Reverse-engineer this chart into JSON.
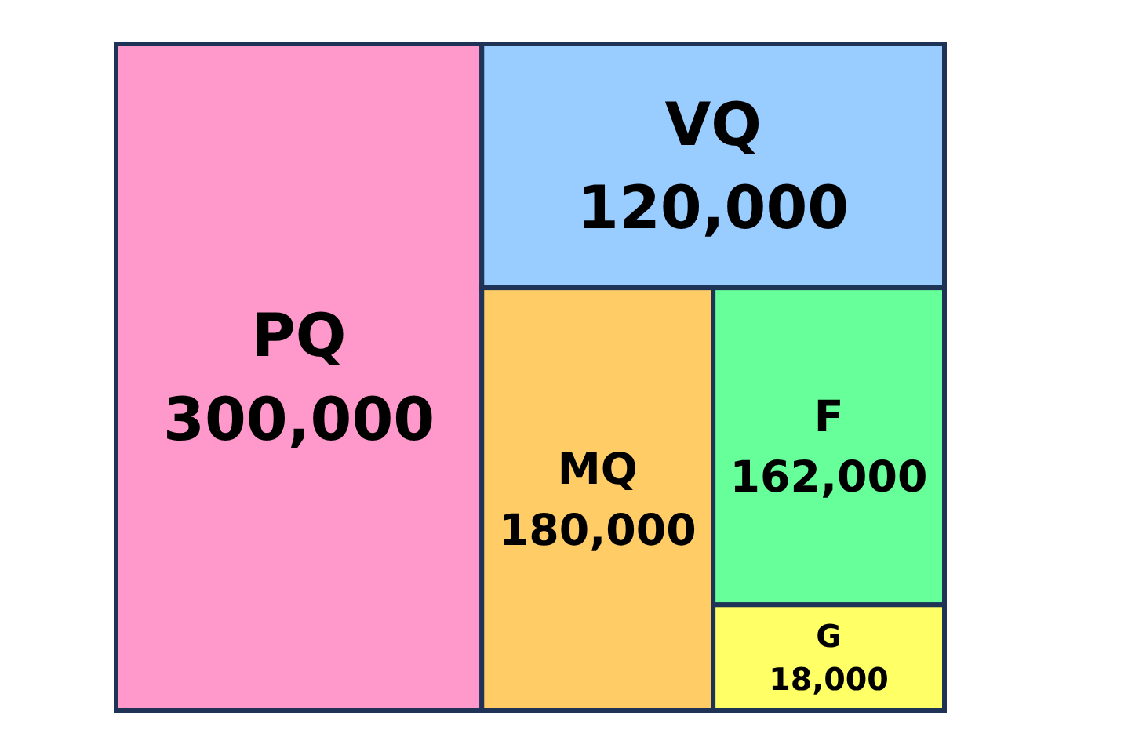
{
  "chart_data": {
    "type": "other",
    "categories": [
      "PQ",
      "VQ",
      "MQ",
      "F",
      "G"
    ],
    "values": [
      300000,
      120000,
      180000,
      162000,
      18000
    ],
    "value_labels": [
      "300,000",
      "120,000",
      "180,000",
      "162,000",
      "18,000"
    ],
    "colors": [
      "#ff99cc",
      "#99ccff",
      "#ffcc66",
      "#66ff99",
      "#ffff66"
    ]
  }
}
